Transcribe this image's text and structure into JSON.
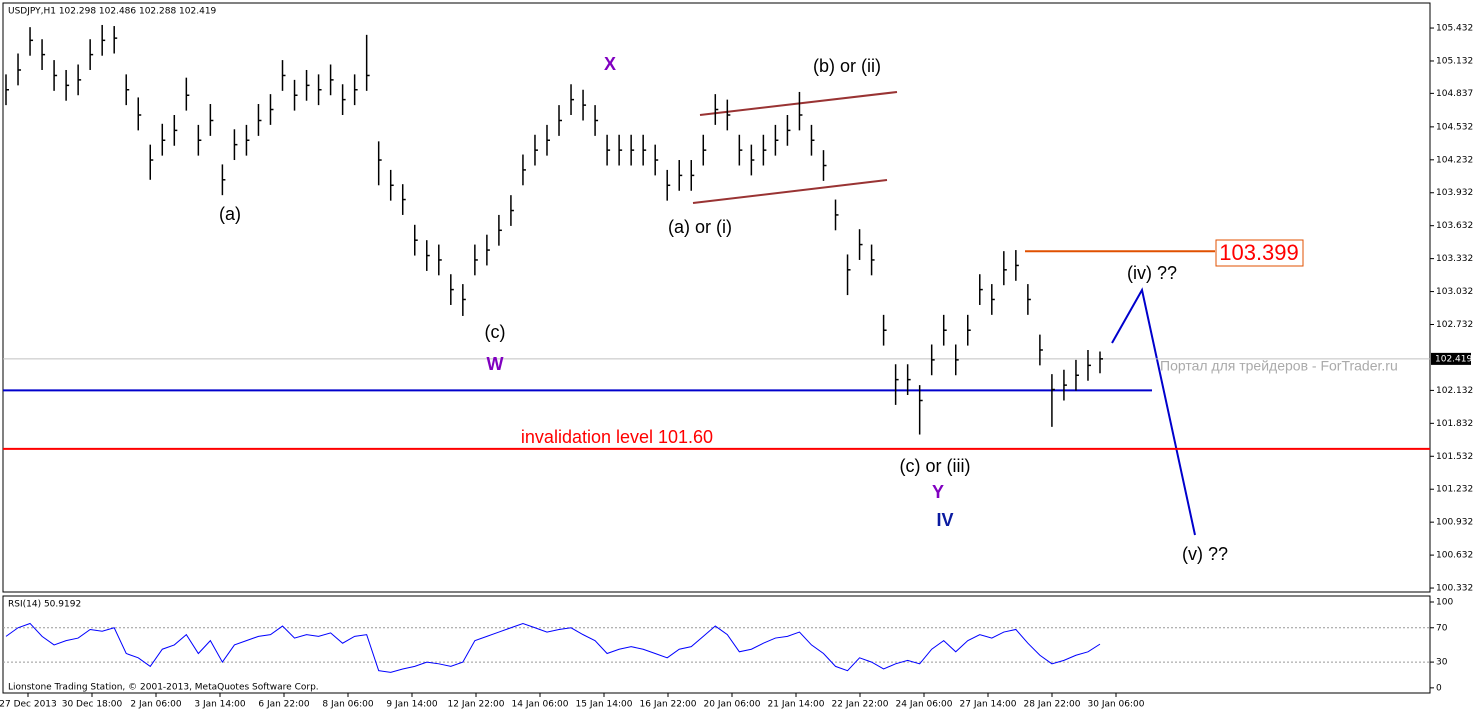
{
  "chart_data": [
    {
      "type": "hlc",
      "title": "USDJPY,H1 102.298 102.486 102.288 102.419",
      "color": "#000000",
      "high": [
        105.01,
        105.2,
        105.44,
        105.33,
        105.14,
        105.05,
        105.1,
        105.33,
        105.46,
        105.45,
        105.01,
        104.8,
        104.37,
        104.56,
        104.64,
        104.98,
        104.55,
        104.74,
        104.19,
        104.51,
        104.55,
        104.74,
        104.83,
        105.14,
        104.96,
        105.05,
        105.01,
        105.1,
        104.92,
        105.01,
        105.37,
        104.4,
        104.14,
        104.01,
        103.64,
        103.5,
        103.46,
        103.19,
        103.1,
        103.46,
        103.55,
        103.73,
        103.91,
        104.28,
        104.46,
        104.55,
        104.73,
        104.92,
        104.87,
        104.73,
        104.46,
        104.46,
        104.46,
        104.46,
        104.37,
        104.14,
        104.23,
        104.23,
        104.46,
        104.83,
        104.78,
        104.46,
        104.37,
        104.46,
        104.55,
        104.64,
        104.85,
        104.55,
        104.32,
        103.87,
        103.37,
        103.6,
        103.46,
        102.82,
        102.37,
        102.37,
        102.18,
        102.55,
        102.82,
        102.55,
        102.82,
        103.19,
        103.1,
        103.4,
        103.41,
        103.1,
        102.64,
        102.28,
        102.32,
        102.41,
        102.5,
        102.486
      ],
      "low": [
        104.73,
        104.91,
        105.18,
        105.05,
        104.86,
        104.77,
        104.82,
        105.05,
        105.18,
        105.2,
        104.73,
        104.5,
        104.05,
        104.27,
        104.36,
        104.68,
        104.27,
        104.45,
        103.91,
        104.23,
        104.27,
        104.45,
        104.55,
        104.86,
        104.68,
        104.77,
        104.73,
        104.82,
        104.64,
        104.73,
        104.86,
        104.0,
        103.86,
        103.73,
        103.36,
        103.22,
        103.18,
        102.91,
        102.81,
        103.18,
        103.27,
        103.45,
        103.63,
        104.0,
        104.18,
        104.27,
        104.45,
        104.64,
        104.59,
        104.45,
        104.18,
        104.18,
        104.18,
        104.18,
        104.09,
        103.86,
        103.95,
        103.95,
        104.18,
        104.55,
        104.5,
        104.18,
        104.09,
        104.18,
        104.27,
        104.36,
        104.5,
        104.27,
        104.04,
        103.59,
        103.0,
        103.32,
        103.18,
        102.54,
        102.0,
        102.09,
        101.73,
        102.27,
        102.54,
        102.27,
        102.54,
        102.91,
        102.82,
        103.09,
        103.13,
        102.82,
        102.36,
        101.8,
        102.04,
        102.13,
        102.22,
        102.288
      ],
      "close": [
        104.87,
        105.05,
        105.32,
        105.19,
        105.0,
        104.91,
        104.96,
        105.19,
        105.32,
        105.34,
        104.87,
        104.64,
        104.23,
        104.41,
        104.5,
        104.82,
        104.41,
        104.59,
        104.05,
        104.37,
        104.41,
        104.59,
        104.69,
        105.0,
        104.82,
        104.91,
        104.87,
        104.96,
        104.78,
        104.87,
        105.0,
        104.23,
        104.0,
        103.87,
        103.5,
        103.36,
        103.32,
        103.05,
        102.96,
        103.32,
        103.41,
        103.59,
        103.77,
        104.14,
        104.32,
        104.41,
        104.59,
        104.78,
        104.73,
        104.59,
        104.32,
        104.32,
        104.32,
        104.32,
        104.23,
        104.0,
        104.09,
        104.09,
        104.32,
        104.69,
        104.64,
        104.32,
        104.23,
        104.32,
        104.41,
        104.5,
        104.64,
        104.41,
        104.18,
        103.73,
        103.23,
        103.46,
        103.32,
        102.68,
        102.23,
        102.23,
        102.04,
        102.41,
        102.68,
        102.41,
        102.68,
        103.05,
        102.96,
        103.23,
        103.27,
        102.96,
        102.5,
        102.14,
        102.18,
        102.27,
        102.36,
        102.419
      ],
      "ylim": [
        100.296,
        105.66
      ],
      "yticks": [
        105.432,
        105.132,
        104.837,
        104.532,
        104.232,
        103.932,
        103.632,
        103.332,
        103.032,
        102.732,
        102.132,
        101.832,
        101.532,
        101.232,
        100.932,
        100.632,
        100.332
      ],
      "xticks": [
        "27 Dec 2013",
        "30 Dec 18:00",
        "2 Jan 06:00",
        "3 Jan 14:00",
        "6 Jan 22:00",
        "8 Jan 06:00",
        "9 Jan 14:00",
        "12 Jan 22:00",
        "14 Jan 06:00",
        "15 Jan 14:00",
        "16 Jan 22:00",
        "20 Jan 06:00",
        "21 Jan 14:00",
        "22 Jan 22:00",
        "24 Jan 06:00",
        "27 Jan 14:00",
        "28 Jan 22:00",
        "30 Jan 06:00"
      ],
      "levels": [
        {
          "value": 102.132,
          "color": "#0000cc"
        },
        {
          "value": 101.6,
          "color": "#ff0000"
        },
        {
          "value": 103.399,
          "color": "#e05000"
        }
      ],
      "annotations": [
        "(a)",
        "(c)",
        "W",
        "X",
        "(b) or (ii)",
        "(a) or (i)",
        "invalidation level 101.60",
        "(c) or (iii)",
        "Y",
        "IV",
        "(iv) ??",
        "(v) ??"
      ],
      "watermark": "Портал для трейдеров - ForTrader.ru",
      "footer": "Lionstone Trading Station, © 2001-2013, MetaQuotes Software Corp."
    },
    {
      "type": "line",
      "title": "RSI(14) 50.9192",
      "color": "#0000ff",
      "values": [
        60,
        70,
        75,
        60,
        50,
        55,
        58,
        68,
        66,
        70,
        40,
        35,
        25,
        45,
        50,
        62,
        40,
        55,
        30,
        50,
        55,
        60,
        62,
        72,
        58,
        62,
        60,
        64,
        52,
        60,
        62,
        20,
        18,
        22,
        25,
        30,
        28,
        25,
        30,
        55,
        60,
        65,
        70,
        75,
        70,
        65,
        68,
        70,
        62,
        55,
        40,
        45,
        48,
        45,
        40,
        35,
        45,
        48,
        60,
        72,
        62,
        42,
        45,
        52,
        58,
        60,
        65,
        50,
        40,
        25,
        20,
        35,
        30,
        22,
        28,
        32,
        28,
        45,
        55,
        42,
        55,
        62,
        58,
        65,
        68,
        52,
        38,
        28,
        32,
        38,
        42,
        50.9192
      ],
      "ylim": [
        -6,
        107
      ],
      "yticks": [
        100,
        70,
        30,
        0
      ],
      "grid_ticks": [
        70,
        30
      ]
    }
  ]
}
